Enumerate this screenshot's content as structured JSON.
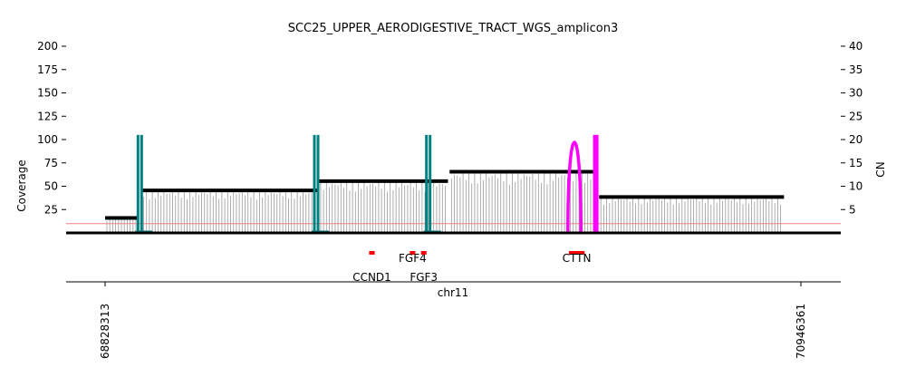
{
  "chart_data": {
    "type": "amplicon-coverage",
    "title": "SCC25_UPPER_AERODIGESTIVE_TRACT_WGS_amplicon3",
    "ylabel_left": "Coverage",
    "ylabel_right": "CN",
    "xlabel": "chr11",
    "ylim_left": [
      0,
      200
    ],
    "yticks_left": [
      25,
      50,
      75,
      100,
      125,
      150,
      175,
      200
    ],
    "ylim_right": [
      0,
      40
    ],
    "yticks_right": [
      5,
      10,
      15,
      20,
      25,
      30,
      35,
      40
    ],
    "xlim": [
      68828313,
      70946361
    ],
    "xtick_labels": [
      "68828313",
      "70946361"
    ],
    "cn_threshold": 2,
    "colors": {
      "coverage": "#999999",
      "cn_segment": "#000000",
      "everted_edge": "#008080",
      "inversion_edge": "#ff00ff",
      "threshold": "#f08080",
      "gene": "#ff0000"
    },
    "cn_segments": [
      {
        "start": 68828313,
        "end": 68929000,
        "cn": 3.2
      },
      {
        "start": 68940000,
        "end": 69479000,
        "cn": 9.1
      },
      {
        "start": 69479000,
        "end": 69872000,
        "cn": 11.1
      },
      {
        "start": 69877000,
        "end": 70330000,
        "cn": 13.1
      },
      {
        "start": 70332000,
        "end": 70895000,
        "cn": 7.7
      }
    ],
    "breakpoints": [
      {
        "pos": 68934000,
        "cn": 21,
        "type": "everted"
      },
      {
        "pos": 69471000,
        "cn": 21,
        "type": "everted"
      },
      {
        "pos": 69812000,
        "cn": 21,
        "type": "everted"
      },
      {
        "pos1": 70237000,
        "pos2": 70277000,
        "cn": 22,
        "type": "inversion"
      },
      {
        "pos": 70322000,
        "cn": 21,
        "type": "inversion"
      }
    ],
    "genes": [
      {
        "name": "CCND1",
        "start": 69632000,
        "end": 69649000,
        "label_row": 2
      },
      {
        "name": "FGF4",
        "start": 69756000,
        "end": 69764000,
        "label_row": 1
      },
      {
        "name": "FGF3",
        "start": 69790000,
        "end": 69806000,
        "label_row": 2
      },
      {
        "name": "CTTN",
        "start": 70240000,
        "end": 70288000,
        "label_row": 1
      }
    ]
  }
}
